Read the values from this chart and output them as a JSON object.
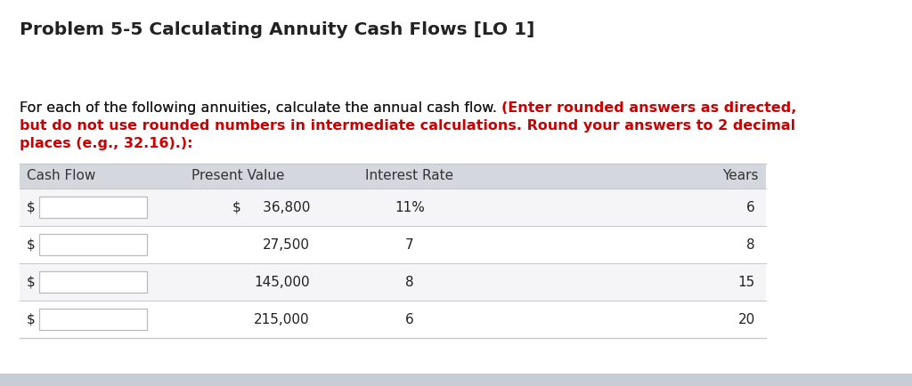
{
  "title": "Problem 5-5 Calculating Annuity Cash Flows [LO 1]",
  "title_fontsize": 14.5,
  "title_color": "#222222",
  "body_black": "For each of the following annuities, calculate the annual cash flow. ",
  "body_red_line1": "(Enter rounded answers as directed,",
  "body_red_line2": "but do not use rounded numbers in intermediate calculations. Round your answers to 2 decimal",
  "body_red_line3": "places (e.g., 32.16).):",
  "body_fontsize": 11.5,
  "body_text_color": "#1a1a1a",
  "body_red_color": "#cc0000",
  "table_headers": [
    "Cash Flow",
    "Present Value",
    "Interest Rate",
    "Years"
  ],
  "table_header_bg": "#d4d7de",
  "present_values": [
    "$     36,800",
    "27,500",
    "145,000",
    "215,000"
  ],
  "interest_rates": [
    "11%",
    "7",
    "8",
    "6"
  ],
  "years": [
    "6",
    "8",
    "15",
    "20"
  ],
  "row_alt_bg": [
    "#f5f5f8",
    "#ffffff",
    "#f5f5f8",
    "#ffffff"
  ],
  "background_color": "#ffffff",
  "input_box_border": "#bbbbbb",
  "separator_color": "#c8c8cc",
  "bottom_bar_color": "#c8ccd4",
  "table_fontsize": 11
}
